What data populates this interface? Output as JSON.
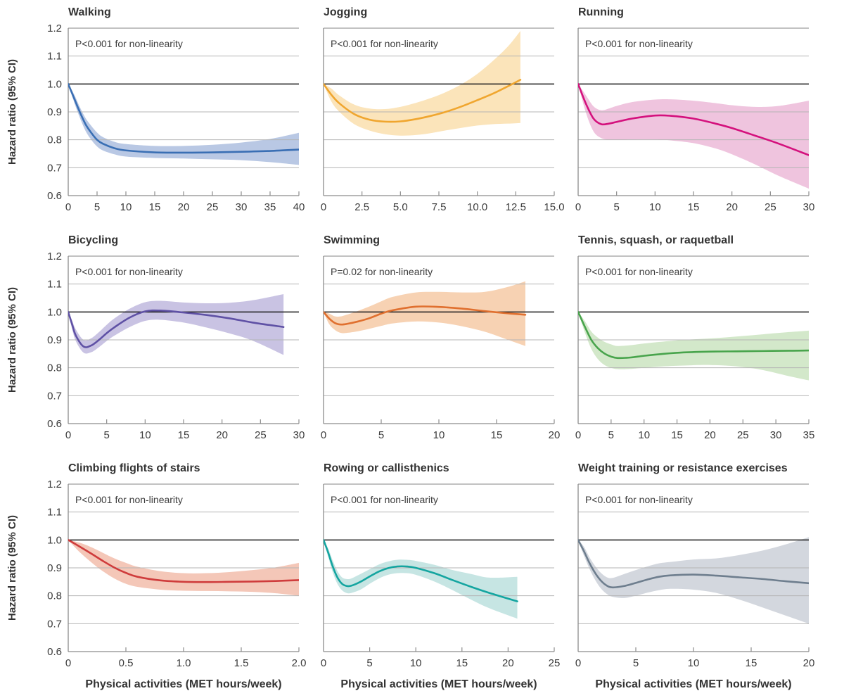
{
  "figure": {
    "ylabel": "Hazard ratio (95% CI)",
    "xlabel": "Physical activities (MET hours/week)",
    "ylim": [
      0.6,
      1.2
    ],
    "yticks": [
      0.6,
      0.7,
      0.8,
      0.9,
      1.0,
      1.1,
      1.2
    ],
    "ytick_labels": [
      "0.6",
      "0.7",
      "0.8",
      "0.9",
      "1.0",
      "1.1",
      "1.2"
    ],
    "gridlines": [
      0.7,
      0.8,
      0.9,
      1.1
    ],
    "reference_value": 1.0,
    "grid_on": true,
    "colors": {
      "grid": "#b4b4b4",
      "axis": "#8c8c8c",
      "reference_line": "#1a1a1a",
      "text": "#333333"
    }
  },
  "chart_data": [
    {
      "type": "line",
      "id": "walking",
      "title": "Walking",
      "pvalue": "P<0.001 for non-linearity",
      "line_color": "#3a6fb4",
      "band_color": "#b9c8e4",
      "xlim": [
        0,
        40
      ],
      "xticks": [
        0,
        5,
        10,
        15,
        20,
        25,
        30,
        35,
        40
      ],
      "xtick_labels": [
        "0",
        "5",
        "10",
        "15",
        "20",
        "25",
        "30",
        "35",
        "40"
      ],
      "x": [
        0,
        1,
        2,
        3,
        4,
        5,
        6,
        8,
        10,
        15,
        20,
        25,
        30,
        35,
        40
      ],
      "y": [
        1.0,
        0.95,
        0.9,
        0.856,
        0.825,
        0.8,
        0.786,
        0.77,
        0.762,
        0.755,
        0.754,
        0.755,
        0.757,
        0.76,
        0.765
      ],
      "lower": [
        1.0,
        0.936,
        0.88,
        0.832,
        0.8,
        0.776,
        0.762,
        0.748,
        0.74,
        0.735,
        0.733,
        0.73,
        0.727,
        0.72,
        0.71
      ],
      "upper": [
        1.0,
        0.964,
        0.918,
        0.878,
        0.85,
        0.826,
        0.81,
        0.793,
        0.785,
        0.778,
        0.778,
        0.782,
        0.79,
        0.803,
        0.825
      ]
    },
    {
      "type": "line",
      "id": "jogging",
      "title": "Jogging",
      "pvalue": "P<0.001 for non-linearity",
      "line_color": "#f0a62f",
      "band_color": "#fbe4ba",
      "xlim": [
        0,
        15
      ],
      "xticks": [
        0,
        2.5,
        5,
        7.5,
        10,
        12.5,
        15
      ],
      "xtick_labels": [
        "0",
        "2.5",
        "5.0",
        "7.5",
        "10.0",
        "12.5",
        "15.0"
      ],
      "x": [
        0,
        0.5,
        1,
        2,
        3,
        4,
        5,
        6,
        7,
        8,
        9,
        10,
        11,
        12,
        12.8
      ],
      "y": [
        1.0,
        0.962,
        0.932,
        0.892,
        0.872,
        0.865,
        0.866,
        0.874,
        0.886,
        0.901,
        0.92,
        0.942,
        0.965,
        0.992,
        1.015
      ],
      "lower": [
        1.0,
        0.938,
        0.902,
        0.856,
        0.833,
        0.82,
        0.815,
        0.817,
        0.824,
        0.834,
        0.843,
        0.851,
        0.856,
        0.858,
        0.86
      ],
      "upper": [
        1.0,
        0.984,
        0.96,
        0.926,
        0.912,
        0.91,
        0.918,
        0.932,
        0.95,
        0.972,
        1.0,
        1.036,
        1.082,
        1.135,
        1.19
      ]
    },
    {
      "type": "line",
      "id": "running",
      "title": "Running",
      "pvalue": "P<0.001 for non-linearity",
      "line_color": "#d4117d",
      "band_color": "#efc4de",
      "xlim": [
        0,
        30
      ],
      "xticks": [
        0,
        5,
        10,
        15,
        20,
        25,
        30
      ],
      "xtick_labels": [
        "0",
        "5",
        "10",
        "15",
        "20",
        "25",
        "30"
      ],
      "x": [
        0,
        1,
        2,
        3,
        4,
        5,
        7,
        10,
        12,
        15,
        18,
        20,
        23,
        26,
        30
      ],
      "y": [
        1.0,
        0.93,
        0.876,
        0.856,
        0.858,
        0.864,
        0.876,
        0.887,
        0.886,
        0.876,
        0.857,
        0.842,
        0.815,
        0.787,
        0.745
      ],
      "lower": [
        1.0,
        0.898,
        0.83,
        0.806,
        0.8,
        0.8,
        0.801,
        0.801,
        0.798,
        0.788,
        0.768,
        0.748,
        0.712,
        0.672,
        0.625
      ],
      "upper": [
        1.0,
        0.96,
        0.92,
        0.906,
        0.912,
        0.921,
        0.935,
        0.944,
        0.945,
        0.94,
        0.931,
        0.924,
        0.918,
        0.921,
        0.94
      ]
    },
    {
      "type": "line",
      "id": "bicycling",
      "title": "Bicycling",
      "pvalue": "P<0.001 for non-linearity",
      "line_color": "#5f51a5",
      "band_color": "#c9c3e3",
      "xlim": [
        0,
        30
      ],
      "xticks": [
        0,
        5,
        10,
        15,
        20,
        25,
        30
      ],
      "xtick_labels": [
        "0",
        "5",
        "10",
        "15",
        "20",
        "25",
        "30"
      ],
      "x": [
        0,
        0.5,
        1,
        2,
        3,
        4,
        5,
        6,
        8,
        10,
        12,
        15,
        18,
        21,
        24,
        28
      ],
      "y": [
        1.0,
        0.956,
        0.915,
        0.876,
        0.88,
        0.9,
        0.924,
        0.945,
        0.98,
        1.002,
        1.005,
        0.998,
        0.989,
        0.977,
        0.962,
        0.946
      ],
      "lower": [
        1.0,
        0.94,
        0.895,
        0.854,
        0.856,
        0.874,
        0.896,
        0.915,
        0.946,
        0.968,
        0.972,
        0.962,
        0.944,
        0.923,
        0.897,
        0.846
      ],
      "upper": [
        1.0,
        0.97,
        0.937,
        0.9,
        0.906,
        0.928,
        0.954,
        0.977,
        1.012,
        1.035,
        1.04,
        1.034,
        1.031,
        1.033,
        1.042,
        1.064
      ]
    },
    {
      "type": "line",
      "id": "swimming",
      "title": "Swimming",
      "pvalue": "P=0.02 for non-linearity",
      "line_color": "#e0702f",
      "band_color": "#f7d2b3",
      "xlim": [
        0,
        20
      ],
      "xticks": [
        0,
        5,
        10,
        15,
        20
      ],
      "xtick_labels": [
        "0",
        "5",
        "10",
        "15",
        "20"
      ],
      "x": [
        0,
        0.5,
        1,
        1.5,
        2,
        3,
        4,
        5,
        6,
        8,
        10,
        12,
        14,
        16,
        17.5
      ],
      "y": [
        1.0,
        0.976,
        0.96,
        0.955,
        0.957,
        0.966,
        0.978,
        0.994,
        1.006,
        1.019,
        1.018,
        1.012,
        1.003,
        0.995,
        0.99
      ],
      "lower": [
        1.0,
        0.956,
        0.935,
        0.925,
        0.925,
        0.931,
        0.94,
        0.95,
        0.959,
        0.966,
        0.962,
        0.949,
        0.929,
        0.9,
        0.878
      ],
      "upper": [
        1.0,
        0.994,
        0.984,
        0.984,
        0.99,
        1.004,
        1.02,
        1.038,
        1.054,
        1.07,
        1.072,
        1.07,
        1.072,
        1.09,
        1.11
      ]
    },
    {
      "type": "line",
      "id": "tennis",
      "title": "Tennis, squash, or raquetball",
      "pvalue": "P<0.001 for non-linearity",
      "line_color": "#48a44c",
      "band_color": "#d3e8ca",
      "xlim": [
        0,
        35
      ],
      "xticks": [
        0,
        5,
        10,
        15,
        20,
        25,
        30,
        35
      ],
      "xtick_labels": [
        "0",
        "5",
        "10",
        "15",
        "20",
        "25",
        "30",
        "35"
      ],
      "x": [
        0,
        1,
        2,
        3,
        4,
        5,
        6,
        8,
        10,
        13,
        16,
        20,
        24,
        28,
        32,
        35
      ],
      "y": [
        1.0,
        0.948,
        0.9,
        0.87,
        0.851,
        0.84,
        0.835,
        0.837,
        0.843,
        0.85,
        0.855,
        0.858,
        0.859,
        0.86,
        0.861,
        0.862
      ],
      "lower": [
        1.0,
        0.928,
        0.868,
        0.831,
        0.81,
        0.8,
        0.795,
        0.796,
        0.8,
        0.805,
        0.808,
        0.81,
        0.805,
        0.792,
        0.77,
        0.755
      ],
      "upper": [
        1.0,
        0.968,
        0.93,
        0.908,
        0.893,
        0.884,
        0.878,
        0.881,
        0.887,
        0.894,
        0.9,
        0.905,
        0.912,
        0.92,
        0.928,
        0.933
      ]
    },
    {
      "type": "line",
      "id": "climbing",
      "title": "Climbing flights of stairs",
      "pvalue": "P<0.001 for non-linearity",
      "line_color": "#cf3c3c",
      "band_color": "#f4c7b8",
      "xlim": [
        0,
        2
      ],
      "xticks": [
        0,
        0.5,
        1,
        1.5,
        2
      ],
      "xtick_labels": [
        "0",
        "0.5",
        "1.0",
        "1.5",
        "2.0"
      ],
      "x": [
        0,
        0.1,
        0.2,
        0.3,
        0.4,
        0.5,
        0.6,
        0.8,
        1.0,
        1.2,
        1.4,
        1.6,
        1.8,
        2.0
      ],
      "y": [
        1.0,
        0.976,
        0.951,
        0.925,
        0.901,
        0.882,
        0.868,
        0.855,
        0.85,
        0.849,
        0.85,
        0.851,
        0.853,
        0.856
      ],
      "lower": [
        1.0,
        0.956,
        0.92,
        0.888,
        0.862,
        0.843,
        0.832,
        0.822,
        0.818,
        0.817,
        0.816,
        0.814,
        0.809,
        0.8
      ],
      "upper": [
        1.0,
        0.99,
        0.974,
        0.954,
        0.934,
        0.918,
        0.904,
        0.888,
        0.881,
        0.881,
        0.885,
        0.892,
        0.902,
        0.918
      ]
    },
    {
      "type": "line",
      "id": "rowing",
      "title": "Rowing or callisthenics",
      "pvalue": "P<0.001 for non-linearity",
      "line_color": "#14a5a0",
      "band_color": "#c6e5e3",
      "xlim": [
        0,
        25
      ],
      "xticks": [
        0,
        5,
        10,
        15,
        20,
        25
      ],
      "xtick_labels": [
        "0",
        "5",
        "10",
        "15",
        "20",
        "25"
      ],
      "x": [
        0,
        0.5,
        1,
        1.5,
        2,
        2.5,
        3,
        4,
        5,
        6,
        7,
        8,
        9,
        10,
        12,
        14,
        16,
        18,
        21
      ],
      "y": [
        1.0,
        0.955,
        0.905,
        0.866,
        0.843,
        0.835,
        0.836,
        0.85,
        0.869,
        0.887,
        0.899,
        0.905,
        0.905,
        0.9,
        0.881,
        0.856,
        0.832,
        0.81,
        0.78
      ],
      "lower": [
        1.0,
        0.94,
        0.884,
        0.843,
        0.82,
        0.81,
        0.81,
        0.822,
        0.843,
        0.862,
        0.875,
        0.881,
        0.881,
        0.875,
        0.851,
        0.82,
        0.786,
        0.755,
        0.718
      ],
      "upper": [
        1.0,
        0.97,
        0.926,
        0.889,
        0.866,
        0.86,
        0.862,
        0.878,
        0.895,
        0.912,
        0.923,
        0.929,
        0.929,
        0.925,
        0.911,
        0.892,
        0.878,
        0.865,
        0.868
      ]
    },
    {
      "type": "line",
      "id": "weight",
      "title": "Weight training or resistance exercises",
      "pvalue": "P<0.001 for non-linearity",
      "line_color": "#6e7e8e",
      "band_color": "#d3d7de",
      "xlim": [
        0,
        20
      ],
      "xticks": [
        0,
        5,
        10,
        15,
        20
      ],
      "xtick_labels": [
        "0",
        "5",
        "10",
        "15",
        "20"
      ],
      "x": [
        0,
        0.5,
        1,
        1.5,
        2,
        2.5,
        3,
        4,
        5,
        6,
        7,
        8,
        10,
        12,
        14,
        16,
        18,
        20
      ],
      "y": [
        1.0,
        0.96,
        0.916,
        0.88,
        0.853,
        0.836,
        0.83,
        0.835,
        0.846,
        0.858,
        0.868,
        0.873,
        0.876,
        0.872,
        0.866,
        0.86,
        0.852,
        0.845
      ],
      "lower": [
        1.0,
        0.944,
        0.895,
        0.855,
        0.825,
        0.806,
        0.796,
        0.792,
        0.8,
        0.811,
        0.82,
        0.825,
        0.822,
        0.81,
        0.786,
        0.758,
        0.729,
        0.7
      ],
      "upper": [
        1.0,
        0.976,
        0.937,
        0.905,
        0.881,
        0.866,
        0.864,
        0.878,
        0.892,
        0.905,
        0.916,
        0.921,
        0.93,
        0.934,
        0.946,
        0.962,
        0.984,
        1.01
      ]
    }
  ]
}
